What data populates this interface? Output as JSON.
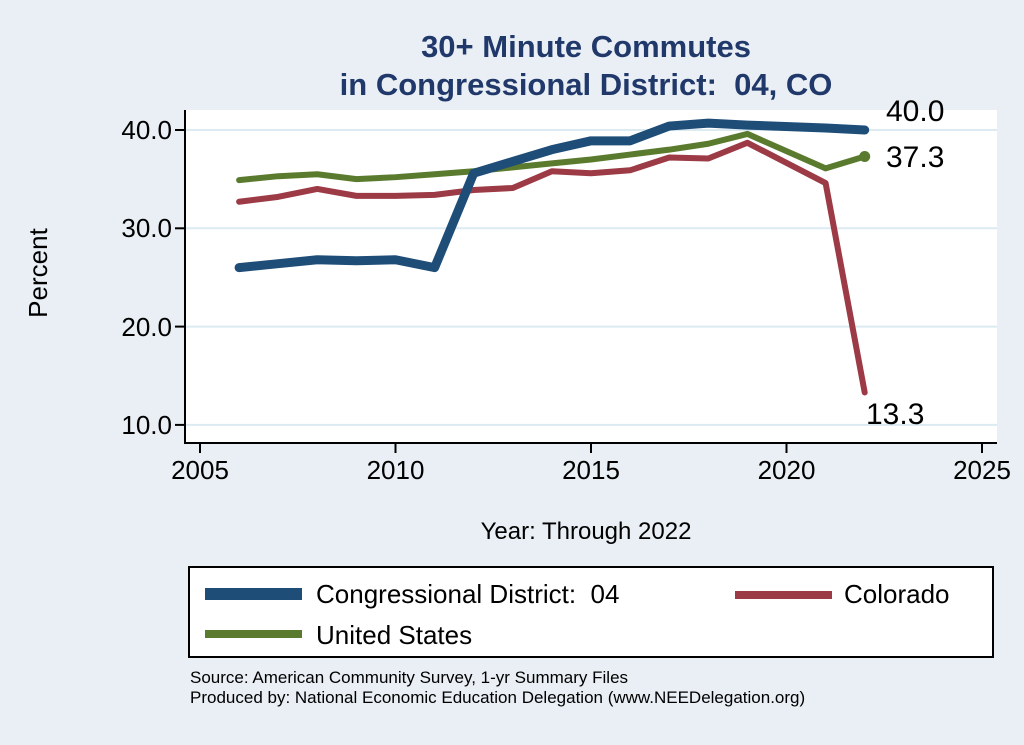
{
  "title": {
    "line1": "30+ Minute Commutes",
    "line2": "in Congressional District:  04, CO"
  },
  "y_axis": {
    "label": "Percent",
    "tick_labels": [
      "40.0",
      "30.0",
      "20.0",
      "10.0"
    ],
    "tick_values": [
      40,
      30,
      20,
      10
    ]
  },
  "x_axis": {
    "label": "Year: Through 2022",
    "tick_labels": [
      "2005",
      "2010",
      "2015",
      "2020",
      "2025"
    ],
    "tick_values": [
      2005,
      2010,
      2015,
      2020,
      2025
    ]
  },
  "end_labels": {
    "district_04": "40.0",
    "united_states": "37.3",
    "colorado": "13.3"
  },
  "legend": {
    "items": [
      {
        "label": "Congressional District:  04",
        "color": "#1e4d78"
      },
      {
        "label": "Colorado",
        "color": "#9c3a45"
      },
      {
        "label": "United States",
        "color": "#5a7b2e"
      }
    ]
  },
  "source": {
    "line1": "Source: American Community Survey, 1-yr Summary Files",
    "line2": "Produced by: National Economic Education Delegation (www.NEEDelegation.org)"
  },
  "colors": {
    "background": "#e9eff4",
    "plot_background": "#ffffff",
    "gridline": "#dceaf2",
    "axis": "#000000",
    "title": "#20386a",
    "district_04": "#1e4d78",
    "colorado": "#9c3a45",
    "united_states": "#5a7b2e"
  },
  "chart_data": {
    "type": "line",
    "title": "30+ Minute Commutes in Congressional District:  04, CO",
    "xlabel": "Year: Through 2022",
    "ylabel": "Percent",
    "xlim": [
      2004.6,
      2025.4
    ],
    "ylim": [
      10,
      40
    ],
    "grid": "horizontal",
    "legend_position": "bottom",
    "note": "No data point for 2020; lines connect 2019 directly to 2021",
    "x": [
      2006,
      2007,
      2008,
      2009,
      2010,
      2011,
      2012,
      2013,
      2014,
      2015,
      2016,
      2017,
      2018,
      2019,
      2021,
      2022
    ],
    "series": [
      {
        "name": "Congressional District:  04",
        "color": "#1e4d78",
        "stroke_width": 9,
        "values": [
          26.0,
          26.4,
          26.8,
          26.7,
          26.8,
          26.0,
          35.6,
          36.8,
          38.0,
          38.9,
          38.9,
          40.4,
          40.7,
          40.5,
          40.2,
          40.0
        ],
        "end_label": "40.0"
      },
      {
        "name": "Colorado",
        "color": "#9c3a45",
        "stroke_width": 6,
        "values": [
          32.7,
          33.2,
          34.0,
          33.3,
          33.3,
          33.4,
          33.9,
          34.1,
          35.8,
          35.6,
          35.9,
          37.2,
          37.1,
          38.7,
          34.6,
          13.3
        ],
        "end_label": "13.3"
      },
      {
        "name": "United States",
        "color": "#5a7b2e",
        "stroke_width": 6,
        "end_marker": true,
        "values": [
          34.9,
          35.3,
          35.5,
          35.0,
          35.2,
          35.5,
          35.8,
          36.2,
          36.6,
          37.0,
          37.5,
          38.0,
          38.6,
          39.6,
          36.1,
          37.3
        ],
        "end_label": "37.3"
      }
    ]
  }
}
